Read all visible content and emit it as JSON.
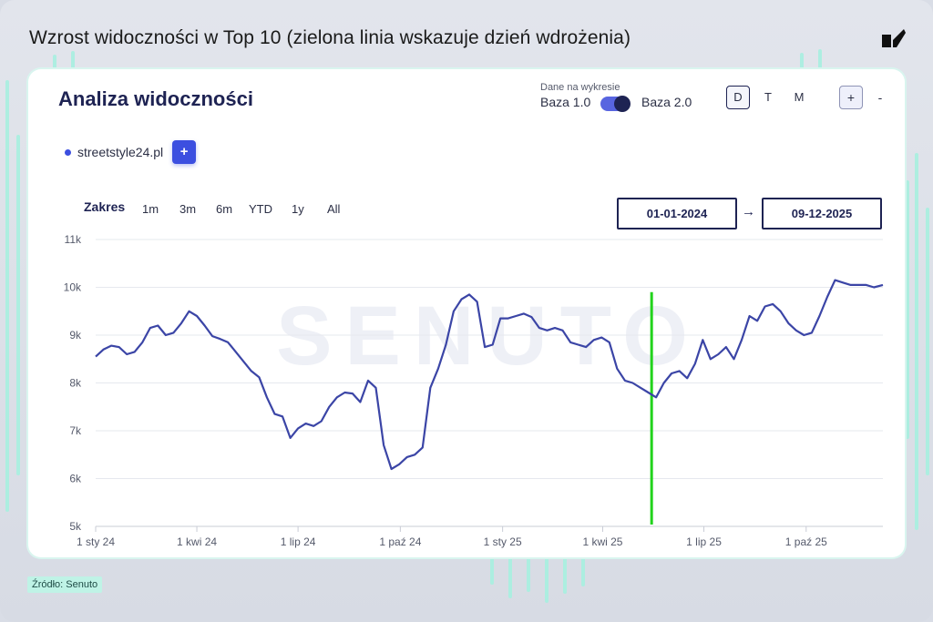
{
  "headline": "Wzrost widoczności w Top 10 (zielona linia wskazuje dzień wdrożenia)",
  "card": {
    "title": "Analiza widoczności",
    "toggle": {
      "caption": "Dane na wykresie",
      "left_label": "Baza 1.0",
      "right_label": "Baza 2.0",
      "selected": "Baza 2.0"
    },
    "period_buttons": [
      "D",
      "T",
      "M"
    ],
    "active_period": "D",
    "zoom_in": "+",
    "zoom_out": "-",
    "legend": {
      "domain": "streetstyle24.pl",
      "add_label": "+"
    },
    "range": {
      "label": "Zakres",
      "options": [
        "1m",
        "3m",
        "6m",
        "YTD",
        "1y",
        "All"
      ],
      "from": "01-01-2024",
      "arrow": "→",
      "to": "09-12-2025"
    },
    "watermark": "SENUTO"
  },
  "source": "Źródło: Senuto",
  "colors": {
    "line": "#3b45a6",
    "deployment_marker": "#22d31c",
    "accent": "#3c4fe0",
    "title": "#1e2353"
  },
  "chart_data": {
    "type": "line",
    "title": "",
    "xlabel": "",
    "ylabel": "",
    "ylim": [
      5000,
      11000
    ],
    "y_ticks": [
      5000,
      6000,
      7000,
      8000,
      9000,
      10000,
      11000
    ],
    "y_tick_labels": [
      "5k",
      "6k",
      "7k",
      "8k",
      "9k",
      "10k",
      "11k"
    ],
    "x_range": [
      "2024-01-01",
      "2025-12-09"
    ],
    "x_ticks": [
      {
        "date": "2024-01-01",
        "label": "1 sty 24"
      },
      {
        "date": "2024-04-01",
        "label": "1 kwi 24"
      },
      {
        "date": "2024-07-01",
        "label": "1 lip 24"
      },
      {
        "date": "2024-10-01",
        "label": "1 paź 24"
      },
      {
        "date": "2025-01-01",
        "label": "1 sty 25"
      },
      {
        "date": "2025-04-01",
        "label": "1 kwi 25"
      },
      {
        "date": "2025-07-01",
        "label": "1 lip 25"
      },
      {
        "date": "2025-10-01",
        "label": "1 paź 25"
      }
    ],
    "grid": true,
    "deployment_date": "2025-05-15",
    "series": [
      {
        "name": "streetstyle24.pl",
        "points": [
          [
            "2024-01-01",
            8550
          ],
          [
            "2024-01-08",
            8700
          ],
          [
            "2024-01-15",
            8780
          ],
          [
            "2024-01-22",
            8750
          ],
          [
            "2024-01-29",
            8600
          ],
          [
            "2024-02-05",
            8650
          ],
          [
            "2024-02-12",
            8850
          ],
          [
            "2024-02-19",
            9150
          ],
          [
            "2024-02-26",
            9200
          ],
          [
            "2024-03-04",
            9000
          ],
          [
            "2024-03-11",
            9050
          ],
          [
            "2024-03-18",
            9250
          ],
          [
            "2024-03-25",
            9500
          ],
          [
            "2024-04-01",
            9400
          ],
          [
            "2024-04-08",
            9200
          ],
          [
            "2024-04-15",
            8980
          ],
          [
            "2024-04-22",
            8920
          ],
          [
            "2024-04-29",
            8850
          ],
          [
            "2024-05-06",
            8650
          ],
          [
            "2024-05-13",
            8450
          ],
          [
            "2024-05-20",
            8250
          ],
          [
            "2024-05-27",
            8120
          ],
          [
            "2024-06-03",
            7700
          ],
          [
            "2024-06-10",
            7350
          ],
          [
            "2024-06-17",
            7300
          ],
          [
            "2024-06-24",
            6850
          ],
          [
            "2024-07-01",
            7050
          ],
          [
            "2024-07-08",
            7150
          ],
          [
            "2024-07-15",
            7100
          ],
          [
            "2024-07-22",
            7200
          ],
          [
            "2024-07-29",
            7500
          ],
          [
            "2024-08-05",
            7700
          ],
          [
            "2024-08-12",
            7800
          ],
          [
            "2024-08-19",
            7780
          ],
          [
            "2024-08-26",
            7600
          ],
          [
            "2024-09-02",
            8050
          ],
          [
            "2024-09-09",
            7900
          ],
          [
            "2024-09-16",
            6700
          ],
          [
            "2024-09-23",
            6200
          ],
          [
            "2024-09-30",
            6300
          ],
          [
            "2024-10-07",
            6450
          ],
          [
            "2024-10-14",
            6500
          ],
          [
            "2024-10-21",
            6650
          ],
          [
            "2024-10-28",
            7900
          ],
          [
            "2024-11-04",
            8300
          ],
          [
            "2024-11-11",
            8800
          ],
          [
            "2024-11-18",
            9500
          ],
          [
            "2024-11-25",
            9750
          ],
          [
            "2024-12-02",
            9850
          ],
          [
            "2024-12-09",
            9700
          ],
          [
            "2024-12-16",
            8750
          ],
          [
            "2024-12-23",
            8800
          ],
          [
            "2024-12-30",
            9350
          ],
          [
            "2025-01-06",
            9350
          ],
          [
            "2025-01-13",
            9400
          ],
          [
            "2025-01-20",
            9450
          ],
          [
            "2025-01-27",
            9380
          ],
          [
            "2025-02-03",
            9150
          ],
          [
            "2025-02-10",
            9100
          ],
          [
            "2025-02-17",
            9150
          ],
          [
            "2025-02-24",
            9100
          ],
          [
            "2025-03-03",
            8850
          ],
          [
            "2025-03-10",
            8800
          ],
          [
            "2025-03-17",
            8750
          ],
          [
            "2025-03-24",
            8900
          ],
          [
            "2025-03-31",
            8950
          ],
          [
            "2025-04-07",
            8850
          ],
          [
            "2025-04-14",
            8300
          ],
          [
            "2025-04-21",
            8050
          ],
          [
            "2025-04-28",
            8000
          ],
          [
            "2025-05-05",
            7900
          ],
          [
            "2025-05-12",
            7800
          ],
          [
            "2025-05-19",
            7700
          ],
          [
            "2025-05-26",
            8000
          ],
          [
            "2025-06-02",
            8200
          ],
          [
            "2025-06-09",
            8250
          ],
          [
            "2025-06-16",
            8100
          ],
          [
            "2025-06-23",
            8400
          ],
          [
            "2025-06-30",
            8900
          ],
          [
            "2025-07-07",
            8500
          ],
          [
            "2025-07-14",
            8600
          ],
          [
            "2025-07-21",
            8750
          ],
          [
            "2025-07-28",
            8500
          ],
          [
            "2025-08-04",
            8900
          ],
          [
            "2025-08-11",
            9400
          ],
          [
            "2025-08-18",
            9300
          ],
          [
            "2025-08-25",
            9600
          ],
          [
            "2025-09-01",
            9650
          ],
          [
            "2025-09-08",
            9500
          ],
          [
            "2025-09-15",
            9250
          ],
          [
            "2025-09-22",
            9100
          ],
          [
            "2025-09-29",
            9000
          ],
          [
            "2025-10-06",
            9050
          ],
          [
            "2025-10-13",
            9400
          ],
          [
            "2025-10-20",
            9800
          ],
          [
            "2025-10-27",
            10150
          ],
          [
            "2025-11-03",
            10100
          ],
          [
            "2025-11-10",
            10050
          ],
          [
            "2025-11-17",
            10050
          ],
          [
            "2025-11-24",
            10050
          ],
          [
            "2025-12-01",
            10000
          ],
          [
            "2025-12-09",
            10050
          ]
        ]
      }
    ]
  }
}
